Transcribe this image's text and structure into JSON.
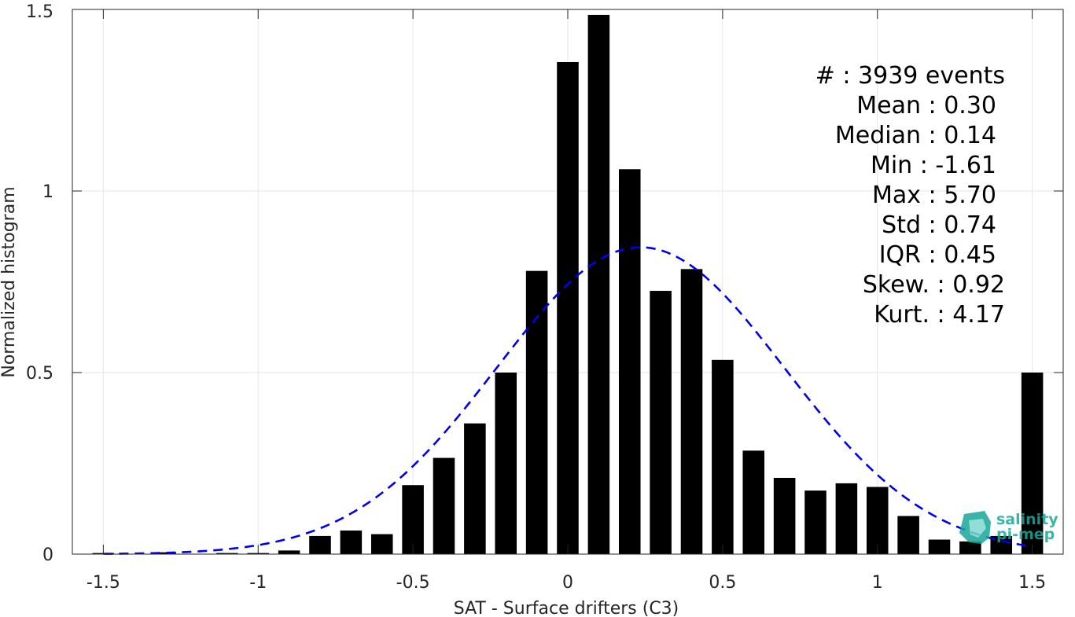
{
  "chart_data": {
    "type": "bar",
    "xlabel": "SAT - Surface drifters (C3)",
    "ylabel": "Normalized histogram",
    "xlim": [
      -1.6,
      1.6
    ],
    "ylim": [
      0,
      1.5
    ],
    "x_ticks": [
      -1.5,
      -1,
      -0.5,
      0,
      0.5,
      1,
      1.5
    ],
    "x_tick_labels": [
      "-1.5",
      "-1",
      "-0.5",
      "0",
      "0.5",
      "1",
      "1.5"
    ],
    "y_ticks": [
      0,
      0.5,
      1,
      1.5
    ],
    "y_tick_labels": [
      "0",
      "0.5",
      "1",
      "1.5"
    ],
    "grid": true,
    "bar_width": 0.07,
    "bar_color": "#000000",
    "bars": [
      {
        "x": -1.5,
        "y": 0.003
      },
      {
        "x": -1.3,
        "y": 0.005
      },
      {
        "x": -1.1,
        "y": 0.003
      },
      {
        "x": -1.0,
        "y": 0.003
      },
      {
        "x": -0.9,
        "y": 0.01
      },
      {
        "x": -0.8,
        "y": 0.05
      },
      {
        "x": -0.7,
        "y": 0.065
      },
      {
        "x": -0.6,
        "y": 0.055
      },
      {
        "x": -0.5,
        "y": 0.19
      },
      {
        "x": -0.4,
        "y": 0.265
      },
      {
        "x": -0.3,
        "y": 0.36
      },
      {
        "x": -0.2,
        "y": 0.5
      },
      {
        "x": -0.1,
        "y": 0.78
      },
      {
        "x": 0.0,
        "y": 1.355
      },
      {
        "x": 0.1,
        "y": 1.485
      },
      {
        "x": 0.2,
        "y": 1.06
      },
      {
        "x": 0.3,
        "y": 0.725
      },
      {
        "x": 0.4,
        "y": 0.785
      },
      {
        "x": 0.5,
        "y": 0.535
      },
      {
        "x": 0.6,
        "y": 0.285
      },
      {
        "x": 0.7,
        "y": 0.21
      },
      {
        "x": 0.8,
        "y": 0.175
      },
      {
        "x": 0.9,
        "y": 0.195
      },
      {
        "x": 1.0,
        "y": 0.185
      },
      {
        "x": 1.1,
        "y": 0.105
      },
      {
        "x": 1.2,
        "y": 0.04
      },
      {
        "x": 1.3,
        "y": 0.035
      },
      {
        "x": 1.4,
        "y": 0.05
      },
      {
        "x": 1.5,
        "y": 0.5
      }
    ],
    "fit_curve": {
      "style": "dashed",
      "color": "#0000ee",
      "mean": 0.235,
      "std": 0.465,
      "peak": 0.845,
      "x_range": [
        -1.5,
        1.5
      ]
    },
    "stats_text": [
      "#  : 3939 events",
      "Mean : 0.30",
      "Median : 0.14",
      "Min : -1.61",
      "Max : 5.70",
      "Std : 0.74",
      "IQR : 0.45",
      "Skew. : 0.92",
      "Kurt. : 4.17"
    ]
  },
  "logo": {
    "line1": "salinity",
    "line2": "pi-mep",
    "color": "#1aa89a"
  }
}
